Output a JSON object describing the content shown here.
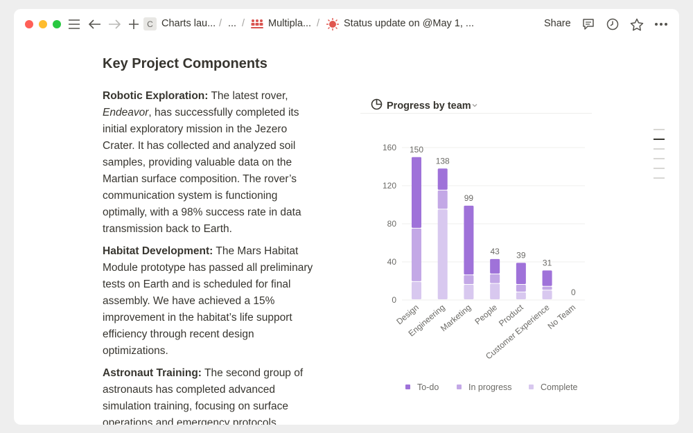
{
  "topbar": {
    "breadcrumbs": [
      {
        "label": "Charts lau...",
        "icon": "c-logo-icon",
        "icon_text": "C"
      },
      {
        "label": "..."
      },
      {
        "label": "Multipla...",
        "icon": "people-grid-icon"
      },
      {
        "label": "Status update on @May 1, ...",
        "icon": "mars-spark-icon"
      }
    ],
    "share_label": "Share"
  },
  "document": {
    "heading": "Key Project Components",
    "paragraphs": [
      {
        "title": "Robotic Exploration:",
        "lines": [
          "The latest rover,",
          "Endeavor, has successfully completed its",
          "initial exploratory mission in the Jezero",
          "Crater. It has collected and analyzed soil",
          "samples, providing valuable data on the",
          "Martian surface composition. The rover’s",
          "communication system is functioning",
          "optimally, with a 98% success rate in data",
          "transmission back to Earth."
        ],
        "italic_word": "Endeavor"
      },
      {
        "title": "Habitat Development:",
        "lines": [
          "The Mars Habitat",
          "Module prototype has passed all preliminary",
          "tests on Earth and is scheduled for final",
          "assembly. We have achieved a 15%",
          "improvement in the habitat’s life support",
          "efficiency through recent design",
          "optimizations."
        ]
      },
      {
        "title": "Astronaut Training:",
        "lines": [
          "The second group of",
          "astronauts has completed advanced",
          "simulation training, focusing on surface",
          "operations and emergency protocols."
        ]
      }
    ]
  },
  "chart_panel": {
    "title": "Progress by team"
  },
  "chart_data": {
    "type": "bar",
    "stacked": true,
    "categories": [
      "Design",
      "Engineering",
      "Marketing",
      "People",
      "Product",
      "Customer Experience",
      "No Team"
    ],
    "series": [
      {
        "name": "Complete",
        "color": "#d8c8ef",
        "values": [
          19,
          95,
          16,
          17,
          8,
          10,
          0
        ]
      },
      {
        "name": "In progress",
        "color": "#c3a8e6",
        "values": [
          56,
          20,
          10,
          10,
          8,
          4,
          0
        ]
      },
      {
        "name": "To-do",
        "color": "#9f72d9",
        "values": [
          75,
          23,
          73,
          16,
          23,
          17,
          0
        ]
      }
    ],
    "totals": [
      150,
      138,
      99,
      43,
      39,
      31,
      0
    ],
    "yticks": [
      0,
      40,
      80,
      120,
      160
    ],
    "ylim": [
      0,
      160
    ],
    "legend": [
      "To-do",
      "In progress",
      "Complete"
    ],
    "legend_position": "bottom",
    "grid": true
  }
}
